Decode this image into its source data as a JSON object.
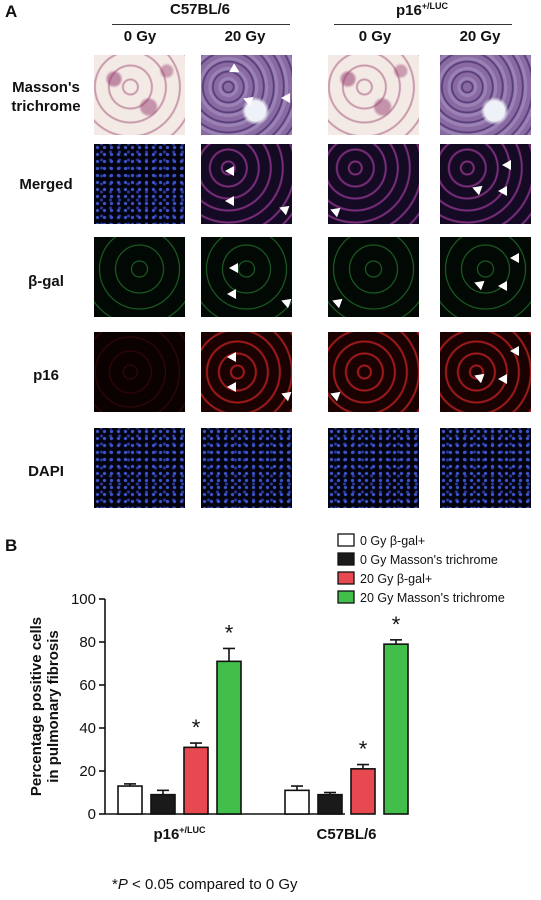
{
  "panel_a": {
    "letter": "A",
    "strains": [
      "C57BL/6",
      "p16+/LUC"
    ],
    "strain_right_base": "p16",
    "strain_right_sup": "+/LUC",
    "doses": [
      "0 Gy",
      "20 Gy",
      "0 Gy",
      "20 Gy"
    ],
    "rows": [
      {
        "label_line1": "Masson's",
        "label_line2": "trichrome"
      },
      {
        "label_line1": "Merged",
        "label_line2": ""
      },
      {
        "label_line1": "β-gal",
        "label_line2": ""
      },
      {
        "label_line1": "p16",
        "label_line2": ""
      },
      {
        "label_line1": "DAPI",
        "label_line2": ""
      }
    ]
  },
  "panel_b": {
    "letter": "B",
    "footnote_star": "*",
    "footnote_p": "P",
    "footnote_rest": " < 0.05 compared to 0 Gy"
  },
  "chart_data": {
    "type": "bar",
    "categories": [
      "p16+/LUC",
      "C57BL/6"
    ],
    "category_display": [
      {
        "base": "p16",
        "sup": "+/LUC"
      },
      {
        "base": "C57BL/6",
        "sup": ""
      }
    ],
    "series": [
      {
        "name": "0 Gy β-gal+",
        "values": [
          13,
          11
        ],
        "errors": [
          1,
          2
        ],
        "significant": [
          false,
          false
        ]
      },
      {
        "name": "0 Gy Masson's trichrome",
        "values": [
          9,
          9
        ],
        "errors": [
          2,
          1
        ],
        "significant": [
          false,
          false
        ]
      },
      {
        "name": "20 Gy β-gal+",
        "values": [
          31,
          21
        ],
        "errors": [
          2,
          2
        ],
        "significant": [
          true,
          true
        ]
      },
      {
        "name": "20 Gy Masson's trichrome",
        "values": [
          71,
          79
        ],
        "errors": [
          6,
          2
        ],
        "significant": [
          true,
          true
        ]
      }
    ],
    "colors": [
      "#ffffff",
      "#1a1a1a",
      "#e8484f",
      "#41bf4a"
    ],
    "ylabel_line1": "Percentage positive cells",
    "ylabel_line2": "in pulmonary fibrosis",
    "ylim": [
      0,
      100
    ],
    "yticks": [
      0,
      20,
      40,
      60,
      80,
      100
    ],
    "significance_marker": "*",
    "legend_position": "top-right"
  }
}
